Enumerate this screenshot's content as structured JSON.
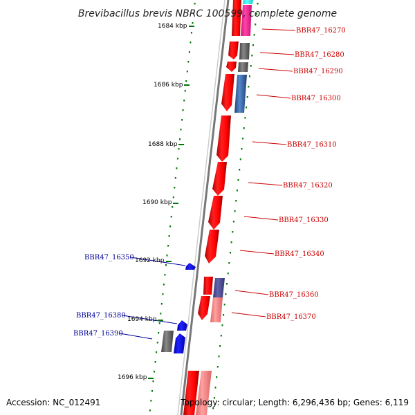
{
  "title": "Brevibacillus brevis NBRC 100599, complete genome",
  "accession": "Accession: NC_012491",
  "topology": "Topology: circular; Length: 6,296,436 bp; Genes: 6,119",
  "ticks": [
    "1684 kbp",
    "1686 kbp",
    "1688 kbp",
    "1690 kbp",
    "1692 kbp",
    "1694 kbp",
    "1696 kbp"
  ],
  "genes_right": [
    "BBR47_16270",
    "BBR47_16280",
    "BBR47_16290",
    "BBR47_16300",
    "BBR47_16310",
    "BBR47_16320",
    "BBR47_16330",
    "BBR47_16340",
    "BBR47_16360",
    "BBR47_16370"
  ],
  "genes_left": [
    "BBR47_16350",
    "BBR47_16380",
    "BBR47_16390"
  ],
  "colors": {
    "gene_red": "#ff0000",
    "gene_pink": "#ff3399",
    "gene_cyan": "#33ffff",
    "gene_gray": "#666666",
    "gene_blue": "#0000ff",
    "gene_steel_blue": "#4477aa",
    "gene_slate": "#55559a",
    "gene_light_red": "#ff8080",
    "label_right": "#cc0000",
    "label_left": "#000099",
    "tick_green": "#007700",
    "backbone": "#888888"
  }
}
